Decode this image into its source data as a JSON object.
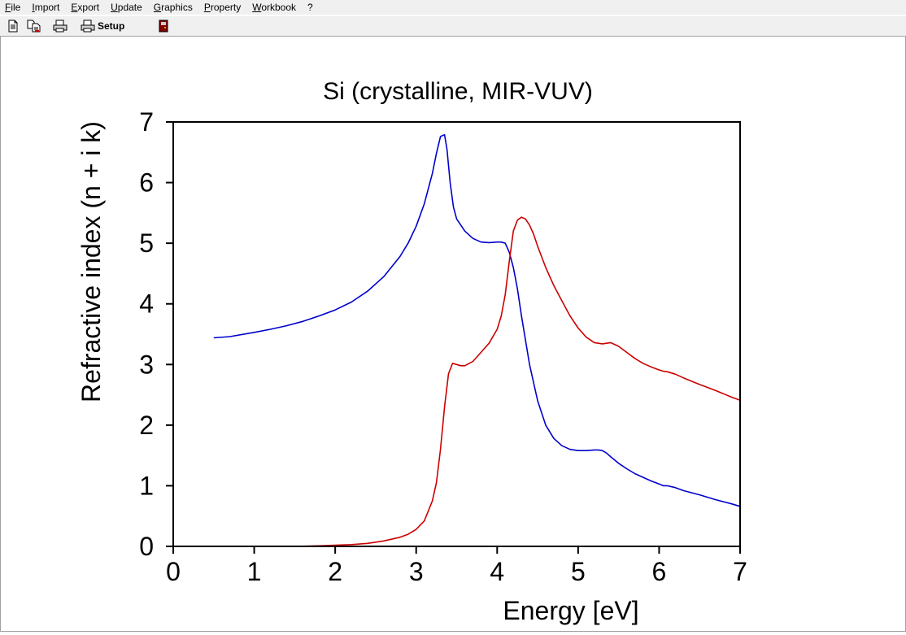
{
  "menu": {
    "items": [
      {
        "key": "F",
        "rest": "ile"
      },
      {
        "key": "I",
        "rest": "mport"
      },
      {
        "key": "E",
        "rest": "xport"
      },
      {
        "key": "U",
        "rest": "pdate"
      },
      {
        "key": "G",
        "rest": "raphics"
      },
      {
        "key": "P",
        "rest": "roperty"
      },
      {
        "key": "W",
        "rest": "orkbook"
      },
      {
        "key": "",
        "rest": "?"
      }
    ]
  },
  "toolbar": {
    "setup_label": "Setup",
    "icons": [
      "new-document-icon",
      "copy-document-icon",
      "print-icon",
      "printer-setup-icon",
      "exit-icon"
    ]
  },
  "chart_data": {
    "type": "line",
    "title": "Si (crystalline, MIR-VUV)",
    "xlabel": "Energy [eV]",
    "ylabel": "Refractive index (n + i k)",
    "xlim": [
      0,
      7
    ],
    "ylim": [
      0,
      7
    ],
    "xticks": [
      "0",
      "1",
      "2",
      "3",
      "4",
      "5",
      "6",
      "7"
    ],
    "yticks": [
      "0",
      "1",
      "2",
      "3",
      "4",
      "5",
      "6",
      "7"
    ],
    "grid": false,
    "legend": "none",
    "series": [
      {
        "color": "#0000cc",
        "x": [
          0.5,
          0.7,
          1.0,
          1.2,
          1.4,
          1.6,
          1.8,
          2.0,
          2.2,
          2.4,
          2.6,
          2.8,
          2.9,
          3.0,
          3.1,
          3.2,
          3.25,
          3.3,
          3.35,
          3.38,
          3.42,
          3.46,
          3.5,
          3.6,
          3.7,
          3.8,
          3.9,
          4.0,
          4.05,
          4.1,
          4.15,
          4.2,
          4.25,
          4.3,
          4.4,
          4.5,
          4.6,
          4.7,
          4.8,
          4.9,
          5.0,
          5.1,
          5.2,
          5.25,
          5.3,
          5.35,
          5.4,
          5.5,
          5.6,
          5.7,
          5.8,
          5.9,
          6.0,
          6.05,
          6.1,
          6.2,
          6.3,
          6.5,
          6.7,
          6.9,
          7.0
        ],
        "y": [
          3.44,
          3.46,
          3.53,
          3.58,
          3.64,
          3.71,
          3.8,
          3.9,
          4.03,
          4.21,
          4.45,
          4.78,
          5.0,
          5.28,
          5.65,
          6.15,
          6.48,
          6.76,
          6.79,
          6.55,
          6.0,
          5.6,
          5.4,
          5.2,
          5.08,
          5.02,
          5.01,
          5.02,
          5.02,
          5.0,
          4.85,
          4.6,
          4.25,
          3.8,
          3.0,
          2.4,
          2.0,
          1.78,
          1.66,
          1.6,
          1.58,
          1.58,
          1.59,
          1.59,
          1.58,
          1.54,
          1.48,
          1.37,
          1.28,
          1.2,
          1.14,
          1.08,
          1.03,
          1.0,
          1.0,
          0.97,
          0.92,
          0.85,
          0.77,
          0.7,
          0.66
        ]
      },
      {
        "color": "#cc0000",
        "x": [
          0.5,
          1.0,
          1.5,
          1.8,
          2.0,
          2.2,
          2.4,
          2.6,
          2.8,
          2.9,
          3.0,
          3.1,
          3.2,
          3.25,
          3.3,
          3.35,
          3.4,
          3.45,
          3.5,
          3.55,
          3.6,
          3.7,
          3.8,
          3.9,
          4.0,
          4.05,
          4.1,
          4.15,
          4.2,
          4.25,
          4.3,
          4.35,
          4.4,
          4.45,
          4.5,
          4.6,
          4.7,
          4.8,
          4.9,
          5.0,
          5.1,
          5.2,
          5.3,
          5.35,
          5.4,
          5.5,
          5.6,
          5.7,
          5.8,
          5.9,
          6.0,
          6.05,
          6.1,
          6.2,
          6.3,
          6.5,
          6.7,
          6.9,
          7.0
        ],
        "y": [
          0.0,
          0.0,
          0.0,
          0.01,
          0.02,
          0.03,
          0.05,
          0.09,
          0.15,
          0.2,
          0.28,
          0.42,
          0.75,
          1.05,
          1.6,
          2.3,
          2.85,
          3.02,
          3.0,
          2.98,
          2.98,
          3.05,
          3.2,
          3.35,
          3.58,
          3.8,
          4.15,
          4.7,
          5.2,
          5.38,
          5.43,
          5.4,
          5.3,
          5.15,
          4.95,
          4.6,
          4.3,
          4.05,
          3.8,
          3.6,
          3.45,
          3.36,
          3.34,
          3.35,
          3.36,
          3.3,
          3.2,
          3.1,
          3.02,
          2.96,
          2.91,
          2.89,
          2.88,
          2.84,
          2.78,
          2.67,
          2.57,
          2.46,
          2.41
        ]
      }
    ]
  }
}
